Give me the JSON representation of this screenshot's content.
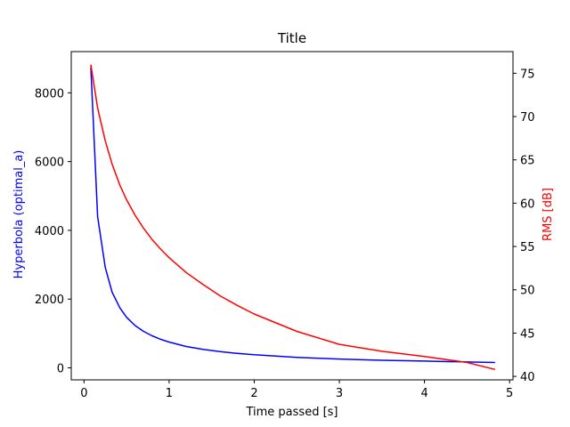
{
  "chart_data": {
    "type": "line",
    "title": "Title",
    "xlabel": "Time passed [s]",
    "ylabel_left": "Hyperbola (optimal_a)",
    "ylabel_right": "RMS [dB]",
    "xlim": [
      -0.15,
      5.04
    ],
    "ylim_left": [
      -350,
      9200
    ],
    "ylim_right": [
      39.6,
      77.5
    ],
    "xticks": [
      0,
      1,
      2,
      3,
      4,
      5
    ],
    "yticks_left": [
      0,
      2000,
      4000,
      6000,
      8000
    ],
    "yticks_right": [
      40,
      45,
      50,
      55,
      60,
      65,
      70,
      75
    ],
    "grid": false,
    "colors": {
      "left_axis": "#0000ff",
      "right_axis": "#ff0000"
    },
    "series": [
      {
        "axis": "left",
        "color": "#0000ff",
        "x": [
          0.08,
          0.16,
          0.25,
          0.33,
          0.42,
          0.5,
          0.6,
          0.7,
          0.8,
          0.9,
          1.0,
          1.2,
          1.4,
          1.6,
          1.8,
          2.0,
          2.5,
          3.0,
          3.5,
          4.0,
          4.5,
          4.83
        ],
        "y": [
          8750,
          4400,
          2920,
          2200,
          1750,
          1470,
          1230,
          1060,
          930,
          830,
          750,
          620,
          535,
          470,
          420,
          380,
          305,
          255,
          220,
          195,
          170,
          155
        ]
      },
      {
        "axis": "right",
        "color": "#ff0000",
        "x": [
          0.08,
          0.12,
          0.16,
          0.2,
          0.25,
          0.33,
          0.42,
          0.5,
          0.6,
          0.7,
          0.8,
          0.9,
          1.0,
          1.2,
          1.4,
          1.6,
          1.8,
          2.0,
          2.5,
          3.0,
          3.5,
          4.0,
          4.5,
          4.83
        ],
        "y": [
          76.0,
          73.5,
          71.0,
          69.3,
          67.2,
          64.5,
          62.1,
          60.4,
          58.6,
          57.1,
          55.8,
          54.7,
          53.7,
          52.0,
          50.6,
          49.3,
          48.2,
          47.2,
          45.2,
          43.7,
          42.9,
          42.3,
          41.6,
          40.8
        ]
      }
    ]
  }
}
